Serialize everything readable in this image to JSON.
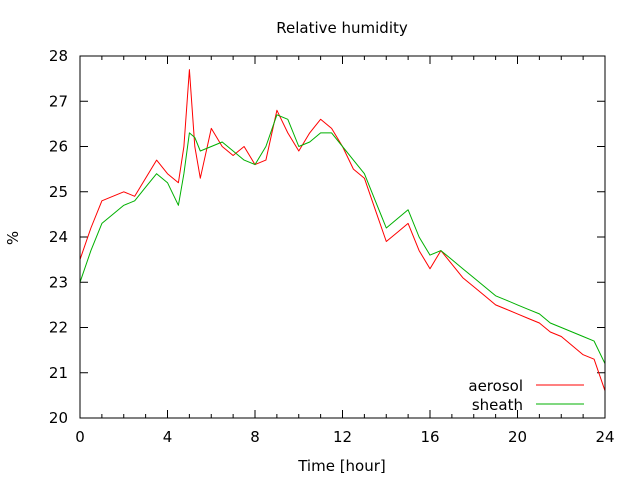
{
  "chart_data": {
    "type": "line",
    "title": "Relative humidity",
    "xlabel": "Time [hour]",
    "ylabel": "%",
    "xlim": [
      0,
      24
    ],
    "ylim": [
      20,
      28
    ],
    "xticks": [
      0,
      4,
      8,
      12,
      16,
      20,
      24
    ],
    "yticks": [
      20,
      21,
      22,
      23,
      24,
      25,
      26,
      27,
      28
    ],
    "grid": false,
    "legend_position": "bottom-right",
    "series": [
      {
        "name": "aerosol",
        "color": "#ff0000",
        "x": [
          0,
          0.5,
          1,
          1.5,
          2,
          2.5,
          3,
          3.5,
          4,
          4.5,
          4.75,
          5,
          5.25,
          5.5,
          6,
          6.5,
          7,
          7.5,
          8,
          8.5,
          9,
          9.5,
          10,
          10.5,
          11,
          11.5,
          12,
          12.5,
          13,
          13.5,
          14,
          14.5,
          15,
          15.5,
          16,
          16.5,
          17,
          17.5,
          18,
          18.5,
          19,
          19.5,
          20,
          20.5,
          21,
          21.5,
          22,
          22.5,
          23,
          23.5,
          24
        ],
        "y": [
          23.5,
          24.2,
          24.8,
          24.9,
          25.0,
          24.9,
          25.3,
          25.7,
          25.4,
          25.2,
          26.0,
          27.7,
          26.0,
          25.3,
          26.4,
          26.0,
          25.8,
          26.0,
          25.6,
          25.7,
          26.8,
          26.3,
          25.9,
          26.3,
          26.6,
          26.4,
          26.0,
          25.5,
          25.3,
          24.6,
          23.9,
          24.1,
          24.3,
          23.7,
          23.3,
          23.7,
          23.4,
          23.1,
          22.9,
          22.7,
          22.5,
          22.4,
          22.3,
          22.2,
          22.1,
          21.9,
          21.8,
          21.6,
          21.4,
          21.3,
          20.6
        ]
      },
      {
        "name": "sheath",
        "color": "#00b000",
        "x": [
          0,
          0.5,
          1,
          1.5,
          2,
          2.5,
          3,
          3.5,
          4,
          4.5,
          4.75,
          5,
          5.25,
          5.5,
          6,
          6.5,
          7,
          7.5,
          8,
          8.5,
          9,
          9.5,
          10,
          10.5,
          11,
          11.5,
          12,
          12.5,
          13,
          13.5,
          14,
          14.5,
          15,
          15.5,
          16,
          16.5,
          17,
          17.5,
          18,
          18.5,
          19,
          19.5,
          20,
          20.5,
          21,
          21.5,
          22,
          22.5,
          23,
          23.5,
          24
        ],
        "y": [
          23.0,
          23.7,
          24.3,
          24.5,
          24.7,
          24.8,
          25.1,
          25.4,
          25.2,
          24.7,
          25.4,
          26.3,
          26.2,
          25.9,
          26.0,
          26.1,
          25.9,
          25.7,
          25.6,
          26.0,
          26.7,
          26.6,
          26.0,
          26.1,
          26.3,
          26.3,
          26.0,
          25.7,
          25.4,
          24.8,
          24.2,
          24.4,
          24.6,
          24.0,
          23.6,
          23.7,
          23.5,
          23.3,
          23.1,
          22.9,
          22.7,
          22.6,
          22.5,
          22.4,
          22.3,
          22.1,
          22.0,
          21.9,
          21.8,
          21.7,
          21.2
        ]
      }
    ]
  }
}
